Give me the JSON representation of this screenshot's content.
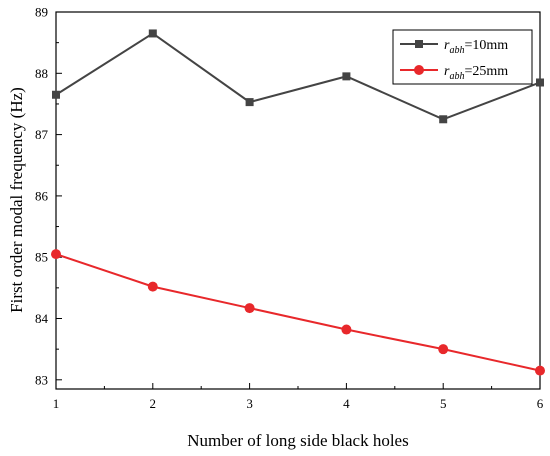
{
  "chart_data": {
    "type": "line",
    "title": "",
    "xlabel": "Number of long side black holes",
    "ylabel": "First order modal frequency (Hz)",
    "x": [
      1,
      2,
      3,
      4,
      5,
      6
    ],
    "xlim": [
      1,
      6
    ],
    "ylim": [
      82.85,
      89
    ],
    "xticks": [
      1,
      2,
      3,
      4,
      5,
      6
    ],
    "yticks": [
      83,
      84,
      85,
      86,
      87,
      88,
      89
    ],
    "grid": false,
    "legend_position": "top-right",
    "series": [
      {
        "name": "r_abh=10mm",
        "legend_symbol": "r",
        "legend_subscript": "abh",
        "legend_suffix": "=10mm",
        "marker": "square",
        "color": "#444444",
        "values": [
          87.65,
          88.65,
          87.53,
          87.95,
          87.25,
          87.85
        ]
      },
      {
        "name": "r_abh=25mm",
        "legend_symbol": "r",
        "legend_subscript": "abh",
        "legend_suffix": "=25mm",
        "marker": "circle",
        "color": "#e8282b",
        "values": [
          85.05,
          84.52,
          84.17,
          83.82,
          83.5,
          83.15
        ]
      }
    ]
  }
}
